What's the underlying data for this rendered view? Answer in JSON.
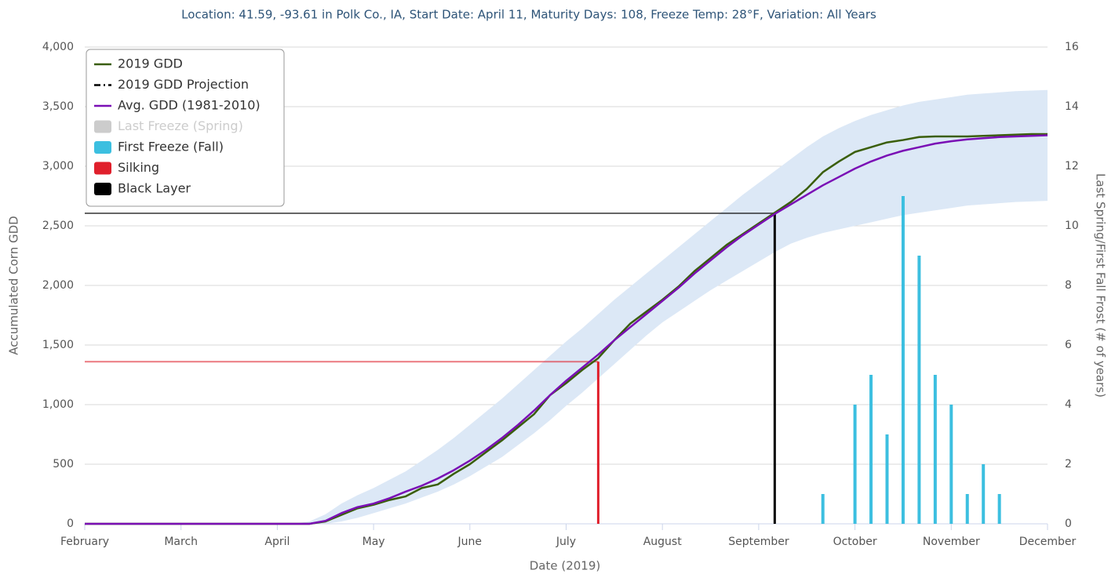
{
  "chart_data": {
    "type": "line",
    "title": "Location: 41.59, -93.61 in Polk Co., IA, Start Date: April 11, Maturity Days: 108, Freeze Temp: 28°F, Variation: All Years",
    "x_label": "Date (2019)",
    "y_label": "Accumulated Corn GDD",
    "y2_label": "Last Spring/First Fall Frost (# of years)",
    "categories": [
      "February",
      null,
      null,
      null,
      null,
      null,
      "March",
      null,
      null,
      null,
      null,
      null,
      "April",
      null,
      null,
      null,
      null,
      null,
      "May",
      null,
      null,
      null,
      null,
      null,
      "June",
      null,
      null,
      null,
      null,
      null,
      "July",
      null,
      null,
      null,
      null,
      null,
      "August",
      null,
      null,
      null,
      null,
      null,
      "September",
      null,
      null,
      null,
      null,
      null,
      "October",
      null,
      null,
      null,
      null,
      null,
      "November",
      null,
      null,
      null,
      null,
      null,
      "December"
    ],
    "ylim": [
      0,
      4000
    ],
    "yticks": [
      0,
      500,
      {
        "value": 1000,
        "label": "1,000"
      },
      {
        "value": 1500,
        "label": "1,500"
      },
      {
        "value": 2000,
        "label": "2,000"
      },
      {
        "value": 2500,
        "label": "2,500"
      },
      {
        "value": 3000,
        "label": "3,000"
      },
      {
        "value": 3500,
        "label": "3,500"
      },
      {
        "value": 4000,
        "label": "4,000"
      }
    ],
    "y2lim": [
      0,
      16
    ],
    "y2ticks": [
      0,
      2,
      4,
      6,
      8,
      10,
      12,
      14,
      16
    ],
    "grid": true,
    "legend": "top-left",
    "range_band": {
      "color": "#dce8f6",
      "high": [
        0,
        0,
        0,
        0,
        0,
        0,
        0,
        0,
        0,
        0,
        0,
        0,
        0,
        0,
        20,
        80,
        170,
        240,
        300,
        370,
        440,
        530,
        620,
        720,
        830,
        940,
        1050,
        1170,
        1290,
        1410,
        1530,
        1640,
        1760,
        1880,
        1990,
        2100,
        2210,
        2320,
        2430,
        2540,
        2650,
        2760,
        2860,
        2960,
        3060,
        3160,
        3250,
        3320,
        3380,
        3430,
        3470,
        3510,
        3540,
        3560,
        3580,
        3600,
        3610,
        3620,
        3630,
        3635,
        3640
      ],
      "low": [
        0,
        0,
        0,
        0,
        0,
        0,
        0,
        0,
        0,
        0,
        0,
        0,
        0,
        0,
        0,
        0,
        20,
        50,
        90,
        130,
        170,
        220,
        270,
        330,
        400,
        480,
        560,
        660,
        760,
        870,
        990,
        1100,
        1220,
        1340,
        1460,
        1580,
        1690,
        1780,
        1870,
        1960,
        2040,
        2120,
        2200,
        2280,
        2350,
        2400,
        2440,
        2470,
        2500,
        2530,
        2560,
        2590,
        2610,
        2630,
        2650,
        2670,
        2680,
        2690,
        2700,
        2705,
        2710
      ]
    },
    "series": [
      {
        "name": "2019 GDD",
        "type": "line",
        "color": "#3a5e0a",
        "values": [
          0,
          0,
          0,
          0,
          0,
          0,
          0,
          0,
          0,
          0,
          0,
          0,
          0,
          0,
          0,
          20,
          75,
          130,
          160,
          200,
          230,
          300,
          330,
          420,
          500,
          600,
          700,
          810,
          920,
          1080,
          1180,
          1290,
          1390,
          1540,
          1680,
          1780,
          1880,
          1990,
          2120,
          2230,
          2340,
          2430,
          2520,
          2610,
          2700,
          2810,
          2950,
          3040,
          3120,
          3160,
          3200,
          3220,
          3245,
          3250,
          3250,
          3250,
          3255,
          3260,
          3265,
          3270,
          3270
        ]
      },
      {
        "name": "2019 GDD Projection",
        "type": "dashed-line",
        "color": "#000000"
      },
      {
        "name": "Avg. GDD (1981-2010)",
        "type": "line",
        "color": "#7a0fb5",
        "values": [
          0,
          0,
          0,
          0,
          0,
          0,
          0,
          0,
          0,
          0,
          0,
          0,
          0,
          0,
          0,
          25,
          90,
          140,
          170,
          215,
          270,
          320,
          380,
          450,
          530,
          620,
          720,
          830,
          950,
          1080,
          1200,
          1310,
          1420,
          1540,
          1650,
          1760,
          1870,
          1980,
          2100,
          2210,
          2320,
          2420,
          2510,
          2600,
          2680,
          2760,
          2840,
          2910,
          2980,
          3040,
          3090,
          3130,
          3160,
          3190,
          3210,
          3225,
          3235,
          3245,
          3250,
          3255,
          3260
        ]
      },
      {
        "name": "Last Freeze (Spring)",
        "type": "column",
        "color": "#bbbbbb",
        "visible": false
      },
      {
        "name": "First Freeze (Fall)",
        "type": "column",
        "color": "#3cbfe0",
        "axis": "y2",
        "values": [
          0,
          0,
          0,
          0,
          0,
          0,
          0,
          0,
          0,
          0,
          0,
          0,
          0,
          0,
          0,
          0,
          0,
          0,
          0,
          0,
          0,
          0,
          0,
          0,
          0,
          0,
          0,
          0,
          0,
          0,
          0,
          0,
          0,
          0,
          0,
          0,
          0,
          0,
          0,
          0,
          0,
          0,
          0,
          0,
          0,
          0,
          1,
          0,
          4,
          5,
          3,
          11,
          9,
          5,
          4,
          1,
          2,
          1,
          0,
          0,
          0
        ]
      },
      {
        "name": "Silking",
        "type": "drop-line",
        "color": "#e0202c",
        "values": [
          null,
          null,
          null,
          null,
          null,
          null,
          null,
          null,
          null,
          null,
          null,
          null,
          null,
          null,
          null,
          null,
          null,
          null,
          null,
          null,
          null,
          null,
          null,
          null,
          null,
          null,
          null,
          null,
          null,
          null,
          null,
          null,
          1360,
          null,
          null,
          null,
          null,
          null,
          null,
          null,
          null,
          null,
          null,
          null,
          null,
          null,
          null,
          null,
          null,
          null,
          null,
          null,
          null,
          null,
          null,
          null,
          null,
          null,
          null,
          null,
          null
        ]
      },
      {
        "name": "Black Layer",
        "type": "drop-line",
        "color": "#000000",
        "values": [
          null,
          null,
          null,
          null,
          null,
          null,
          null,
          null,
          null,
          null,
          null,
          null,
          null,
          null,
          null,
          null,
          null,
          null,
          null,
          null,
          null,
          null,
          null,
          null,
          null,
          null,
          null,
          null,
          null,
          null,
          null,
          null,
          null,
          null,
          null,
          null,
          null,
          null,
          null,
          null,
          null,
          null,
          null,
          2605,
          null,
          null,
          null,
          null,
          null,
          null,
          null,
          null,
          null,
          null,
          null,
          null,
          null,
          null,
          null,
          null,
          null
        ]
      }
    ]
  }
}
